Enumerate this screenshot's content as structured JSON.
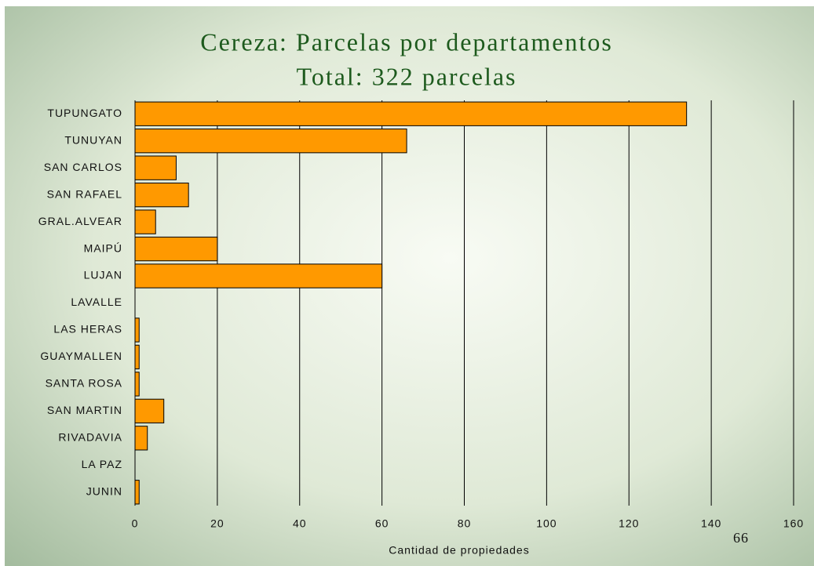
{
  "chart_data": {
    "type": "bar",
    "orientation": "horizontal",
    "title": "Cereza: Parcelas por departamentos",
    "subtitle": "Total: 322 parcelas",
    "xlabel": "Cantidad de propiedades",
    "page_number": "66",
    "categories": [
      "TUPUNGATO",
      "TUNUYAN",
      "SAN CARLOS",
      "SAN RAFAEL",
      "GRAL.ALVEAR",
      "MAIPÚ",
      "LUJAN",
      "LAVALLE",
      "LAS HERAS",
      "GUAYMALLEN",
      "SANTA ROSA",
      "SAN MARTIN",
      "RIVADAVIA",
      "LA PAZ",
      "JUNIN"
    ],
    "values": [
      134,
      66,
      10,
      13,
      5,
      20,
      60,
      0,
      1,
      1,
      1,
      7,
      3,
      0,
      1
    ],
    "color": "#ff9900",
    "xlim": [
      0,
      160
    ],
    "xticks": [
      0,
      20,
      40,
      60,
      80,
      100,
      120,
      140,
      160
    ],
    "grid": true
  }
}
